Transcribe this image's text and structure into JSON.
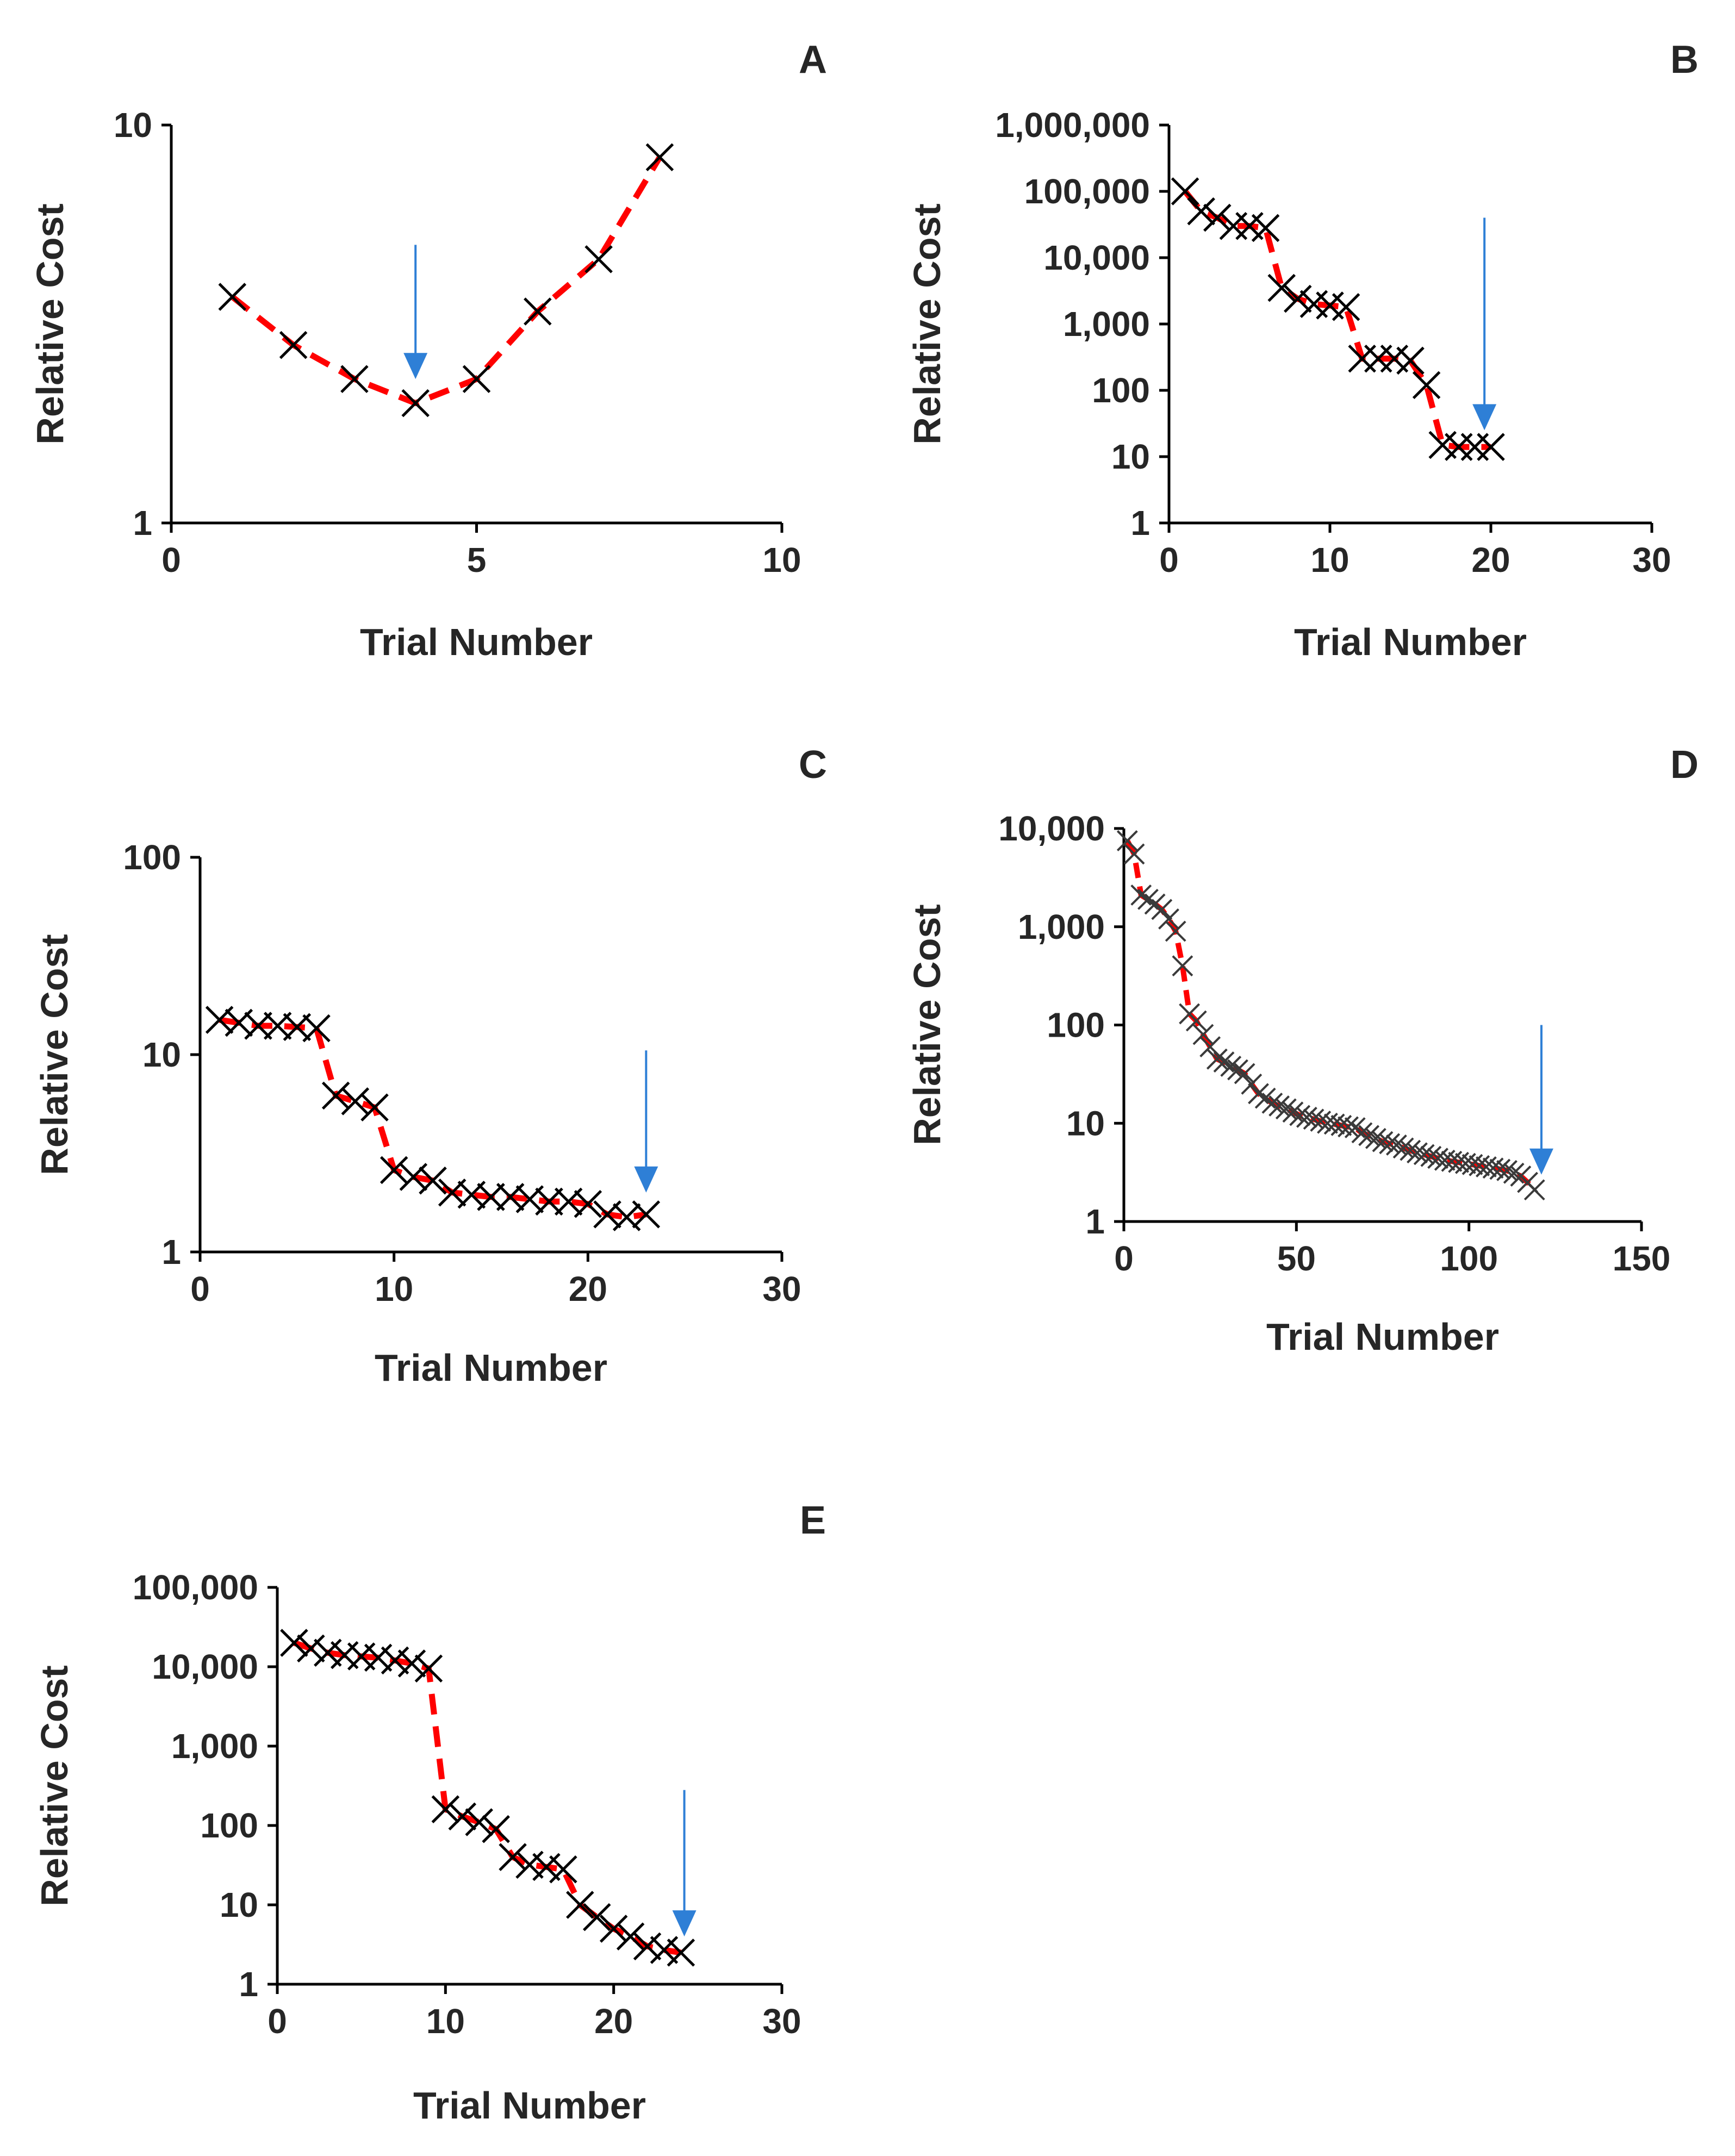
{
  "figure": {
    "background": "#ffffff",
    "axis_color": "#000000",
    "marker_color": "#000000",
    "line_color": "#ff0000",
    "arrow_color": "#2e7fd6"
  },
  "chart_data": [
    {
      "id": "A",
      "panel_label": "A",
      "type": "line",
      "y_scale": "log",
      "xlabel": "Trial Number",
      "ylabel": "Relative Cost",
      "xlim": [
        0,
        10
      ],
      "ylim": [
        1,
        10
      ],
      "xticks": [
        0,
        5,
        10
      ],
      "xtick_labels": [
        "0",
        "5",
        "10"
      ],
      "yticks": [
        1,
        10
      ],
      "ytick_labels": [
        "1",
        "10"
      ],
      "series": [
        {
          "name": "Relative Cost",
          "marker": "x",
          "line": "dashed",
          "x": [
            1,
            2,
            3,
            4,
            5,
            6,
            7,
            8
          ],
          "y": [
            3.7,
            2.8,
            2.3,
            2.0,
            2.3,
            3.4,
            4.6,
            8.3
          ]
        }
      ],
      "arrow": {
        "x": 4,
        "y_top": 5.0,
        "y_tip": 2.3
      }
    },
    {
      "id": "B",
      "panel_label": "B",
      "type": "line",
      "y_scale": "log",
      "xlabel": "Trial Number",
      "ylabel": "Relative Cost",
      "xlim": [
        0,
        30
      ],
      "ylim": [
        1,
        1000000
      ],
      "xticks": [
        0,
        10,
        20,
        30
      ],
      "xtick_labels": [
        "0",
        "10",
        "20",
        "30"
      ],
      "yticks": [
        1,
        10,
        100,
        1000,
        10000,
        100000,
        1000000
      ],
      "ytick_labels": [
        "1",
        "10",
        "100",
        "1,000",
        "10,000",
        "100,000",
        "1,000,000"
      ],
      "series": [
        {
          "name": "Relative Cost",
          "marker": "x",
          "line": "dashed",
          "x": [
            1,
            2,
            3,
            4,
            5,
            6,
            7,
            8,
            9,
            10,
            11,
            12,
            13,
            14,
            15,
            16,
            17,
            18,
            19,
            20
          ],
          "y": [
            100000,
            50000,
            40000,
            30000,
            30000,
            28000,
            3500,
            2400,
            2000,
            1900,
            1800,
            300,
            300,
            300,
            280,
            120,
            15,
            14,
            14,
            14
          ]
        }
      ],
      "arrow": {
        "x": 19.6,
        "y_top": 40000,
        "y_tip": 25
      }
    },
    {
      "id": "C",
      "panel_label": "C",
      "type": "line",
      "y_scale": "log",
      "xlabel": "Trial Number",
      "ylabel": "Relative Cost",
      "xlim": [
        0,
        30
      ],
      "ylim": [
        1,
        100
      ],
      "xticks": [
        0,
        10,
        20,
        30
      ],
      "xtick_labels": [
        "0",
        "10",
        "20",
        "30"
      ],
      "yticks": [
        1,
        10,
        100
      ],
      "ytick_labels": [
        "1",
        "10",
        "100"
      ],
      "series": [
        {
          "name": "Relative Cost",
          "marker": "x",
          "line": "dashed",
          "x": [
            1,
            2,
            3,
            4,
            5,
            6,
            7,
            8,
            9,
            10,
            11,
            12,
            13,
            14,
            15,
            16,
            17,
            18,
            19,
            20,
            21,
            22,
            23
          ],
          "y": [
            15,
            14.5,
            14,
            14,
            13.8,
            13.6,
            6.2,
            5.8,
            5.4,
            2.6,
            2.4,
            2.3,
            2.0,
            1.95,
            1.9,
            1.9,
            1.85,
            1.8,
            1.8,
            1.75,
            1.55,
            1.5,
            1.55
          ]
        }
      ],
      "arrow": {
        "x": 23,
        "y_top": 10.5,
        "y_tip": 2.0
      }
    },
    {
      "id": "D",
      "panel_label": "D",
      "type": "line",
      "y_scale": "log",
      "xlabel": "Trial Number",
      "ylabel": "Relative Cost",
      "xlim": [
        0,
        150
      ],
      "ylim": [
        1,
        10000
      ],
      "xticks": [
        0,
        50,
        100,
        150
      ],
      "xtick_labels": [
        "0",
        "50",
        "100",
        "150"
      ],
      "yticks": [
        1,
        10,
        100,
        1000,
        10000
      ],
      "ytick_labels": [
        "1",
        "10",
        "100",
        "1,000",
        "10,000"
      ],
      "series": [
        {
          "name": "Relative Cost",
          "marker": "x",
          "line": "dashed",
          "x": [
            1,
            3,
            5,
            7,
            9,
            11,
            13,
            15,
            17,
            19,
            21,
            23,
            25,
            27,
            29,
            31,
            33,
            35,
            37,
            39,
            41,
            43,
            45,
            47,
            49,
            51,
            53,
            55,
            57,
            59,
            61,
            63,
            65,
            67,
            69,
            71,
            73,
            75,
            77,
            79,
            81,
            83,
            85,
            87,
            89,
            91,
            93,
            95,
            97,
            99,
            101,
            103,
            105,
            107,
            109,
            111,
            113,
            115,
            117,
            119
          ],
          "y": [
            7500,
            5500,
            2100,
            1900,
            1700,
            1500,
            1200,
            900,
            400,
            130,
            110,
            80,
            60,
            45,
            42,
            38,
            35,
            32,
            25,
            20,
            18,
            16,
            15,
            14,
            13,
            12,
            11.5,
            11,
            10.5,
            10,
            9.8,
            9.5,
            9.2,
            9,
            8,
            7.5,
            7,
            6.5,
            6.2,
            6,
            5.6,
            5.3,
            5.0,
            4.8,
            4.6,
            4.4,
            4.2,
            4.1,
            4.0,
            3.9,
            3.8,
            3.7,
            3.6,
            3.5,
            3.4,
            3.3,
            3.1,
            2.9,
            2.5,
            2.1
          ]
        }
      ],
      "arrow": {
        "x": 121,
        "y_top": 100,
        "y_tip": 3.0
      }
    },
    {
      "id": "E",
      "panel_label": "E",
      "type": "line",
      "y_scale": "log",
      "xlabel": "Trial Number",
      "ylabel": "Relative Cost",
      "xlim": [
        0,
        30
      ],
      "ylim": [
        1,
        100000
      ],
      "xticks": [
        0,
        10,
        20,
        30
      ],
      "xtick_labels": [
        "0",
        "10",
        "20",
        "30"
      ],
      "yticks": [
        1,
        10,
        100,
        1000,
        10000,
        100000
      ],
      "ytick_labels": [
        "1",
        "10",
        "100",
        "1,000",
        "10,000",
        "100,000"
      ],
      "series": [
        {
          "name": "Relative Cost",
          "marker": "x",
          "line": "dashed",
          "x": [
            1,
            2,
            3,
            4,
            5,
            6,
            7,
            8,
            9,
            10,
            11,
            12,
            13,
            14,
            15,
            16,
            17,
            18,
            19,
            20,
            21,
            22,
            23,
            24
          ],
          "y": [
            20000,
            17000,
            15000,
            14000,
            13500,
            13000,
            12000,
            11000,
            9500,
            160,
            130,
            110,
            90,
            40,
            32,
            30,
            28,
            10,
            7,
            5,
            4,
            3,
            2.7,
            2.5
          ]
        }
      ],
      "arrow": {
        "x": 24.2,
        "y_top": 280,
        "y_tip": 4.0
      }
    }
  ]
}
